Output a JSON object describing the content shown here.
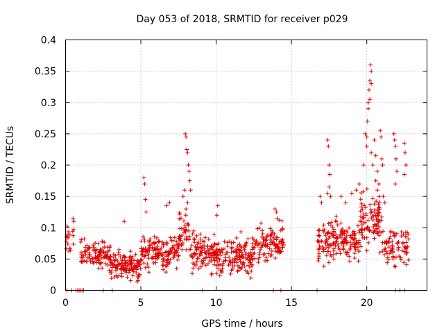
{
  "chart_data": {
    "type": "scatter",
    "title": "Day 053 of 2018, SRMTID for receiver p029",
    "xlabel": "GPS time / hours",
    "ylabel": "SRMTID / TECUs",
    "xlim": [
      0,
      24
    ],
    "ylim": [
      0,
      0.4
    ],
    "x_ticks": [
      0,
      5,
      10,
      15,
      20
    ],
    "x_tick_labels": [
      "0",
      "5",
      "10",
      "15",
      "20"
    ],
    "y_ticks": [
      0,
      0.05,
      0.1,
      0.15,
      0.2,
      0.25,
      0.3,
      0.35,
      0.4
    ],
    "y_tick_labels": [
      "0",
      "0.05",
      "0.1",
      "0.15",
      "0.2",
      "0.25",
      "0.3",
      "0.35",
      "0.4"
    ],
    "grid": true,
    "marker": "+",
    "color": "#e00000",
    "baseline": {
      "y": 0,
      "x": [
        0.1,
        0.4,
        0.7,
        0.8,
        0.9,
        1.0,
        1.1,
        1.2,
        2.5,
        3.1,
        9.1,
        13.8,
        14.3,
        16.7,
        21.9,
        22.2,
        22.5
      ]
    },
    "segments": [
      {
        "x_start": 0.0,
        "x_end": 0.6,
        "base": 0.08,
        "spread": 0.03,
        "count": 18
      },
      {
        "x_start": 1.0,
        "x_end": 3.0,
        "base": 0.055,
        "spread": 0.025,
        "count": 110
      },
      {
        "x_start": 3.0,
        "x_end": 5.0,
        "base": 0.04,
        "spread": 0.022,
        "count": 130
      },
      {
        "x_start": 5.0,
        "x_end": 7.5,
        "base": 0.06,
        "spread": 0.028,
        "count": 150
      },
      {
        "x_start": 7.5,
        "x_end": 8.2,
        "base": 0.09,
        "spread": 0.035,
        "count": 40
      },
      {
        "x_start": 8.2,
        "x_end": 10.0,
        "base": 0.06,
        "spread": 0.03,
        "count": 110
      },
      {
        "x_start": 10.0,
        "x_end": 12.5,
        "base": 0.055,
        "spread": 0.03,
        "count": 150
      },
      {
        "x_start": 12.5,
        "x_end": 14.5,
        "base": 0.075,
        "spread": 0.03,
        "count": 110
      },
      {
        "x_start": 16.7,
        "x_end": 18.0,
        "base": 0.08,
        "spread": 0.035,
        "count": 80
      },
      {
        "x_start": 18.0,
        "x_end": 19.5,
        "base": 0.075,
        "spread": 0.03,
        "count": 90
      },
      {
        "x_start": 19.5,
        "x_end": 21.0,
        "base": 0.11,
        "spread": 0.045,
        "count": 100
      },
      {
        "x_start": 21.0,
        "x_end": 22.8,
        "base": 0.07,
        "spread": 0.03,
        "count": 80
      }
    ],
    "peaks": [
      {
        "x": 0.5,
        "y": 0.115
      },
      {
        "x": 0.55,
        "y": 0.11
      },
      {
        "x": 3.9,
        "y": 0.11
      },
      {
        "x": 5.2,
        "y": 0.18
      },
      {
        "x": 5.25,
        "y": 0.17
      },
      {
        "x": 5.3,
        "y": 0.145
      },
      {
        "x": 5.35,
        "y": 0.125
      },
      {
        "x": 6.7,
        "y": 0.135
      },
      {
        "x": 6.9,
        "y": 0.14
      },
      {
        "x": 7.8,
        "y": 0.15
      },
      {
        "x": 7.9,
        "y": 0.16
      },
      {
        "x": 7.95,
        "y": 0.25
      },
      {
        "x": 8.0,
        "y": 0.245
      },
      {
        "x": 8.05,
        "y": 0.225
      },
      {
        "x": 8.1,
        "y": 0.22
      },
      {
        "x": 8.15,
        "y": 0.2
      },
      {
        "x": 8.2,
        "y": 0.19
      },
      {
        "x": 8.25,
        "y": 0.175
      },
      {
        "x": 8.3,
        "y": 0.16
      },
      {
        "x": 8.1,
        "y": 0.14
      },
      {
        "x": 8.0,
        "y": 0.13
      },
      {
        "x": 10.1,
        "y": 0.135
      },
      {
        "x": 10.05,
        "y": 0.12
      },
      {
        "x": 13.9,
        "y": 0.13
      },
      {
        "x": 14.0,
        "y": 0.125
      },
      {
        "x": 14.05,
        "y": 0.115
      },
      {
        "x": 16.9,
        "y": 0.15
      },
      {
        "x": 17.0,
        "y": 0.14
      },
      {
        "x": 17.4,
        "y": 0.24
      },
      {
        "x": 17.45,
        "y": 0.23
      },
      {
        "x": 17.5,
        "y": 0.2
      },
      {
        "x": 17.55,
        "y": 0.185
      },
      {
        "x": 17.5,
        "y": 0.165
      },
      {
        "x": 17.4,
        "y": 0.155
      },
      {
        "x": 17.6,
        "y": 0.15
      },
      {
        "x": 18.3,
        "y": 0.15
      },
      {
        "x": 18.6,
        "y": 0.14
      },
      {
        "x": 19.0,
        "y": 0.155
      },
      {
        "x": 19.3,
        "y": 0.16
      },
      {
        "x": 19.5,
        "y": 0.17
      },
      {
        "x": 19.8,
        "y": 0.2
      },
      {
        "x": 19.9,
        "y": 0.25
      },
      {
        "x": 20.0,
        "y": 0.245
      },
      {
        "x": 20.05,
        "y": 0.27
      },
      {
        "x": 20.1,
        "y": 0.3
      },
      {
        "x": 20.15,
        "y": 0.32
      },
      {
        "x": 20.2,
        "y": 0.335
      },
      {
        "x": 20.25,
        "y": 0.36
      },
      {
        "x": 20.3,
        "y": 0.35
      },
      {
        "x": 20.3,
        "y": 0.33
      },
      {
        "x": 20.2,
        "y": 0.305
      },
      {
        "x": 20.1,
        "y": 0.29
      },
      {
        "x": 20.0,
        "y": 0.23
      },
      {
        "x": 20.3,
        "y": 0.22
      },
      {
        "x": 20.4,
        "y": 0.2
      },
      {
        "x": 20.5,
        "y": 0.24
      },
      {
        "x": 20.6,
        "y": 0.215
      },
      {
        "x": 20.7,
        "y": 0.19
      },
      {
        "x": 20.8,
        "y": 0.17
      },
      {
        "x": 20.9,
        "y": 0.255
      },
      {
        "x": 20.95,
        "y": 0.245
      },
      {
        "x": 21.0,
        "y": 0.21
      },
      {
        "x": 21.05,
        "y": 0.2
      },
      {
        "x": 20.6,
        "y": 0.175
      },
      {
        "x": 20.7,
        "y": 0.16
      },
      {
        "x": 21.1,
        "y": 0.15
      },
      {
        "x": 21.2,
        "y": 0.14
      },
      {
        "x": 21.8,
        "y": 0.25
      },
      {
        "x": 21.85,
        "y": 0.24
      },
      {
        "x": 21.9,
        "y": 0.23
      },
      {
        "x": 21.95,
        "y": 0.21
      },
      {
        "x": 22.0,
        "y": 0.19
      },
      {
        "x": 21.9,
        "y": 0.17
      },
      {
        "x": 22.5,
        "y": 0.235
      },
      {
        "x": 22.55,
        "y": 0.22
      },
      {
        "x": 22.6,
        "y": 0.2
      },
      {
        "x": 22.5,
        "y": 0.185
      }
    ]
  }
}
